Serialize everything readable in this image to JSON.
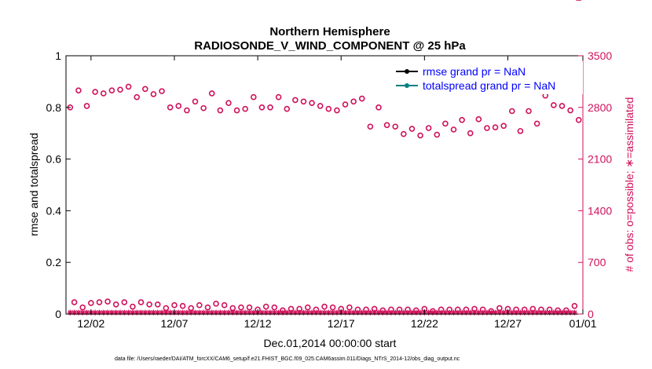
{
  "chart_data": {
    "type": "scatter",
    "title_line1": "Northern Hemisphere",
    "title_line2": "RADIOSONDE_V_WIND_COMPONENT @ 25 hPa",
    "xlabel": "Dec.01,2014 00:00:00 start",
    "ylabel_left": "rmse and totalspread",
    "ylabel_right": "# of obs: o=possible; ∗=assimilated",
    "footer": "data file: /Users/raeder/DAI/ATM_forcXX/CAM6_setup/f.e21.FHIST_BGC.f09_025.CAM6assim.011/Diags_NTrS_2014-12/obs_diag_output.nc",
    "xlim": [
      0.5,
      31.5
    ],
    "ylim_left": [
      0,
      1
    ],
    "ylim_right": [
      0,
      3500
    ],
    "xtick_values": [
      2,
      7,
      12,
      17,
      22,
      27,
      32
    ],
    "xtick_labels": [
      "12/02",
      "12/07",
      "12/12",
      "12/17",
      "12/22",
      "12/27",
      "01/01"
    ],
    "ytick_left": [
      "0",
      "0.2",
      "0.4",
      "0.6",
      "0.8",
      "1"
    ],
    "ytick_left_values": [
      0,
      0.2,
      0.4,
      0.6,
      0.8,
      1
    ],
    "ytick_right": [
      "0",
      "700",
      "1400",
      "2100",
      "2800",
      "3500"
    ],
    "ytick_right_values": [
      0,
      700,
      1400,
      2100,
      2800,
      3500
    ],
    "legend": [
      {
        "label": "rmse grand pr = NaN",
        "color": "#000000"
      },
      {
        "label": "totalspread grand pr = NaN",
        "color": "#008080"
      }
    ],
    "colors": {
      "obs": "#d0105a",
      "rmse": "#000000",
      "spread": "#008080"
    },
    "x": [
      0.75,
      1.0,
      1.25,
      1.5,
      1.75,
      2.0,
      2.25,
      2.5,
      2.75,
      3.0,
      3.25,
      3.5,
      3.75,
      4.0,
      4.25,
      4.5,
      4.75,
      5.0,
      5.25,
      5.5,
      5.75,
      6.0,
      6.25,
      6.5,
      6.75,
      7.0,
      7.25,
      7.5,
      7.75,
      8.0,
      8.25,
      8.5,
      8.75,
      9.0,
      9.25,
      9.5,
      9.75,
      10.0,
      10.25,
      10.5,
      10.75,
      11.0,
      11.25,
      11.5,
      11.75,
      12.0,
      12.25,
      12.5,
      12.75,
      13.0,
      13.25,
      13.5,
      13.75,
      14.0,
      14.25,
      14.5,
      14.75,
      15.0,
      15.25,
      15.5,
      15.75,
      16.0,
      16.25,
      16.5,
      16.75,
      17.0,
      17.25,
      17.5,
      17.75,
      18.0,
      18.25,
      18.5,
      18.75,
      19.0,
      19.25,
      19.5,
      19.75,
      20.0,
      20.25,
      20.5,
      20.75,
      21.0,
      21.25,
      21.5,
      21.75,
      22.0,
      22.25,
      22.5,
      22.75,
      23.0,
      23.25,
      23.5,
      23.75,
      24.0,
      24.25,
      24.5,
      24.75,
      25.0,
      25.25,
      25.5,
      25.75,
      26.0,
      26.25,
      26.5,
      26.75,
      27.0,
      27.25,
      27.5,
      27.75,
      28.0,
      28.25,
      28.5,
      28.75,
      29.0,
      29.25,
      29.5,
      29.75,
      30.0,
      30.25,
      30.5,
      30.75,
      31.0,
      31.25
    ],
    "possible": [
      2800,
      160,
      3030,
      90,
      2820,
      150,
      3010,
      160,
      2990,
      170,
      3030,
      130,
      3040,
      160,
      3080,
      100,
      2940,
      160,
      3050,
      130,
      2980,
      130,
      3020,
      80,
      2800,
      120,
      2820,
      110,
      2760,
      80,
      2880,
      120,
      2790,
      90,
      2990,
      140,
      2760,
      120,
      2860,
      80,
      2760,
      90,
      2780,
      90,
      2940,
      60,
      2800,
      100,
      2800,
      90,
      2940,
      50,
      2780,
      70,
      2900,
      70,
      2880,
      90,
      2860,
      60,
      2820,
      100,
      2780,
      90,
      2760,
      70,
      2840,
      90,
      2880,
      60,
      2920,
      60,
      2540,
      70,
      2800,
      50,
      2560,
      60,
      2540,
      60,
      2440,
      60,
      2510,
      50,
      2420,
      70,
      2520,
      40,
      2430,
      60,
      2580,
      60,
      2500,
      60,
      2630,
      60,
      2450,
      70,
      2640,
      60,
      2520,
      40,
      2530,
      80,
      2550,
      70,
      2750,
      60,
      2480,
      60,
      2750,
      70,
      2580,
      60,
      2960,
      60,
      2830,
      50,
      2820,
      50,
      2760,
      110,
      2630,
      70
    ],
    "assimilated": [
      20,
      20,
      20,
      20,
      20,
      20,
      20,
      20,
      20,
      20,
      20,
      20,
      20,
      20,
      20,
      20,
      20,
      20,
      20,
      20,
      20,
      20,
      20,
      20,
      20,
      20,
      20,
      20,
      20,
      20,
      20,
      20,
      20,
      20,
      20,
      20,
      20,
      20,
      20,
      20,
      20,
      20,
      20,
      20,
      20,
      20,
      20,
      20,
      20,
      20,
      20,
      20,
      20,
      20,
      20,
      20,
      20,
      20,
      20,
      20,
      20,
      20,
      20,
      20,
      20,
      20,
      20,
      20,
      20,
      20,
      20,
      20,
      20,
      20,
      20,
      20,
      20,
      20,
      20,
      20,
      20,
      20,
      20,
      20,
      20,
      20,
      20,
      20,
      20,
      20,
      20,
      20,
      20,
      20,
      20,
      20,
      20,
      20,
      20,
      20,
      20,
      20,
      20,
      20,
      20,
      20,
      20,
      20,
      20,
      20,
      20,
      20,
      20,
      20,
      20,
      20,
      20,
      20,
      20,
      20,
      20,
      20
    ]
  }
}
